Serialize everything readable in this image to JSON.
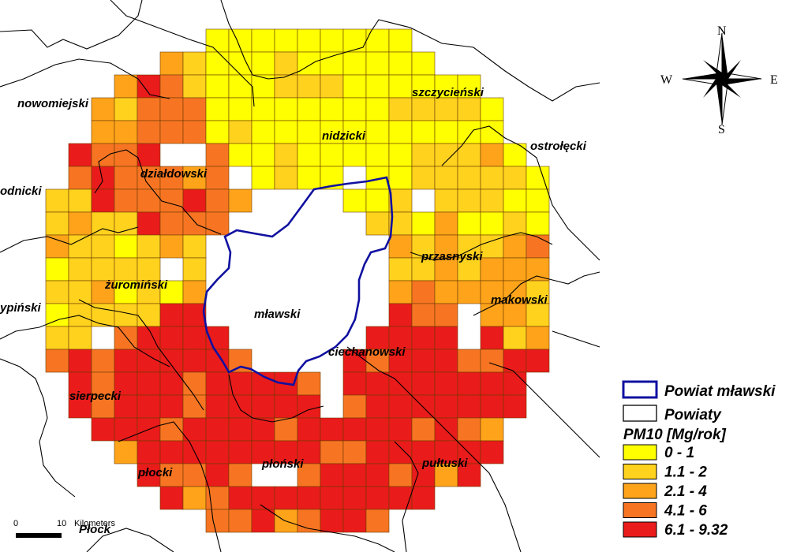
{
  "map": {
    "labels": [
      {
        "id": "nowomiejski",
        "text": "nowomiejski"
      },
      {
        "id": "dzialdowski",
        "text": "działdowski"
      },
      {
        "id": "nidzicki",
        "text": "nidzicki"
      },
      {
        "id": "szczycienski",
        "text": "szczycieński"
      },
      {
        "id": "ostrolecki",
        "text": "ostrołęcki"
      },
      {
        "id": "odnicki",
        "text": "odnicki"
      },
      {
        "id": "przasnyski",
        "text": "przasnyski"
      },
      {
        "id": "zurominski",
        "text": "żuromiński"
      },
      {
        "id": "mlawski",
        "text": "mławski"
      },
      {
        "id": "makowski",
        "text": "makowski"
      },
      {
        "id": "ciechanowski",
        "text": "ciechanowski"
      },
      {
        "id": "ypinski",
        "text": "ypiński"
      },
      {
        "id": "sierpecki",
        "text": "sierpecki"
      },
      {
        "id": "plocki",
        "text": "płocki"
      },
      {
        "id": "plonski",
        "text": "płoński"
      },
      {
        "id": "pultuski",
        "text": "pułtuski"
      },
      {
        "id": "plock",
        "text": "Płock"
      }
    ]
  },
  "compass": {
    "n": "N",
    "s": "S",
    "e": "E",
    "w": "W"
  },
  "scale": {
    "zero": "0",
    "ten": "10",
    "unit": "Kilometers"
  },
  "legend": {
    "powiat_mlawski": "Powiat mławski",
    "powiaty": "Powiaty",
    "title": "PM10 [Mg/rok]",
    "classes": [
      {
        "label": "0 - 1",
        "color": "#ffff00"
      },
      {
        "label": "1.1 - 2",
        "color": "#ffd21e"
      },
      {
        "label": "2.1 - 4",
        "color": "#ffa41a"
      },
      {
        "label": "4.1 - 6",
        "color": "#f77522"
      },
      {
        "label": "6.1 - 9.32",
        "color": "#ea1b1b"
      }
    ]
  },
  "colors": {
    "border": "#000000",
    "mlawski_border": "#1010a0"
  }
}
